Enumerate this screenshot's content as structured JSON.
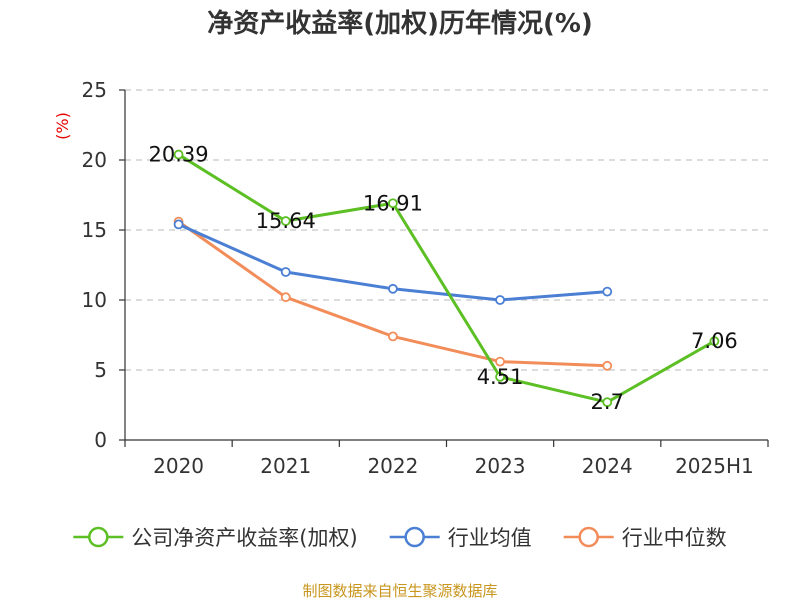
{
  "chart_data": {
    "type": "line",
    "title": "净资产收益率(加权)历年情况(%)",
    "ylabel": "(%)",
    "xlabel": "",
    "categories": [
      "2020",
      "2021",
      "2022",
      "2023",
      "2024",
      "2025H1"
    ],
    "ylim": [
      0,
      25
    ],
    "yticks": [
      0,
      5,
      10,
      15,
      20,
      25
    ],
    "grid": "horizontal dashed",
    "legend_position": "bottom",
    "series": [
      {
        "name": "公司净资产收益率(加权)",
        "color": "#5cbf24",
        "values": [
          20.39,
          15.64,
          16.91,
          4.51,
          2.7,
          7.06
        ],
        "data_labels": [
          "20.39",
          "15.64",
          "16.91",
          "4.51",
          "2.7",
          "7.06"
        ]
      },
      {
        "name": "行业均值",
        "color": "#4a7fd4",
        "values": [
          15.4,
          12.0,
          10.8,
          10.0,
          10.6,
          null
        ]
      },
      {
        "name": "行业中位数",
        "color": "#f28d5a",
        "values": [
          15.6,
          10.2,
          7.4,
          5.6,
          5.3,
          null
        ]
      }
    ]
  },
  "source_text": "制图数据来自恒生聚源数据库"
}
